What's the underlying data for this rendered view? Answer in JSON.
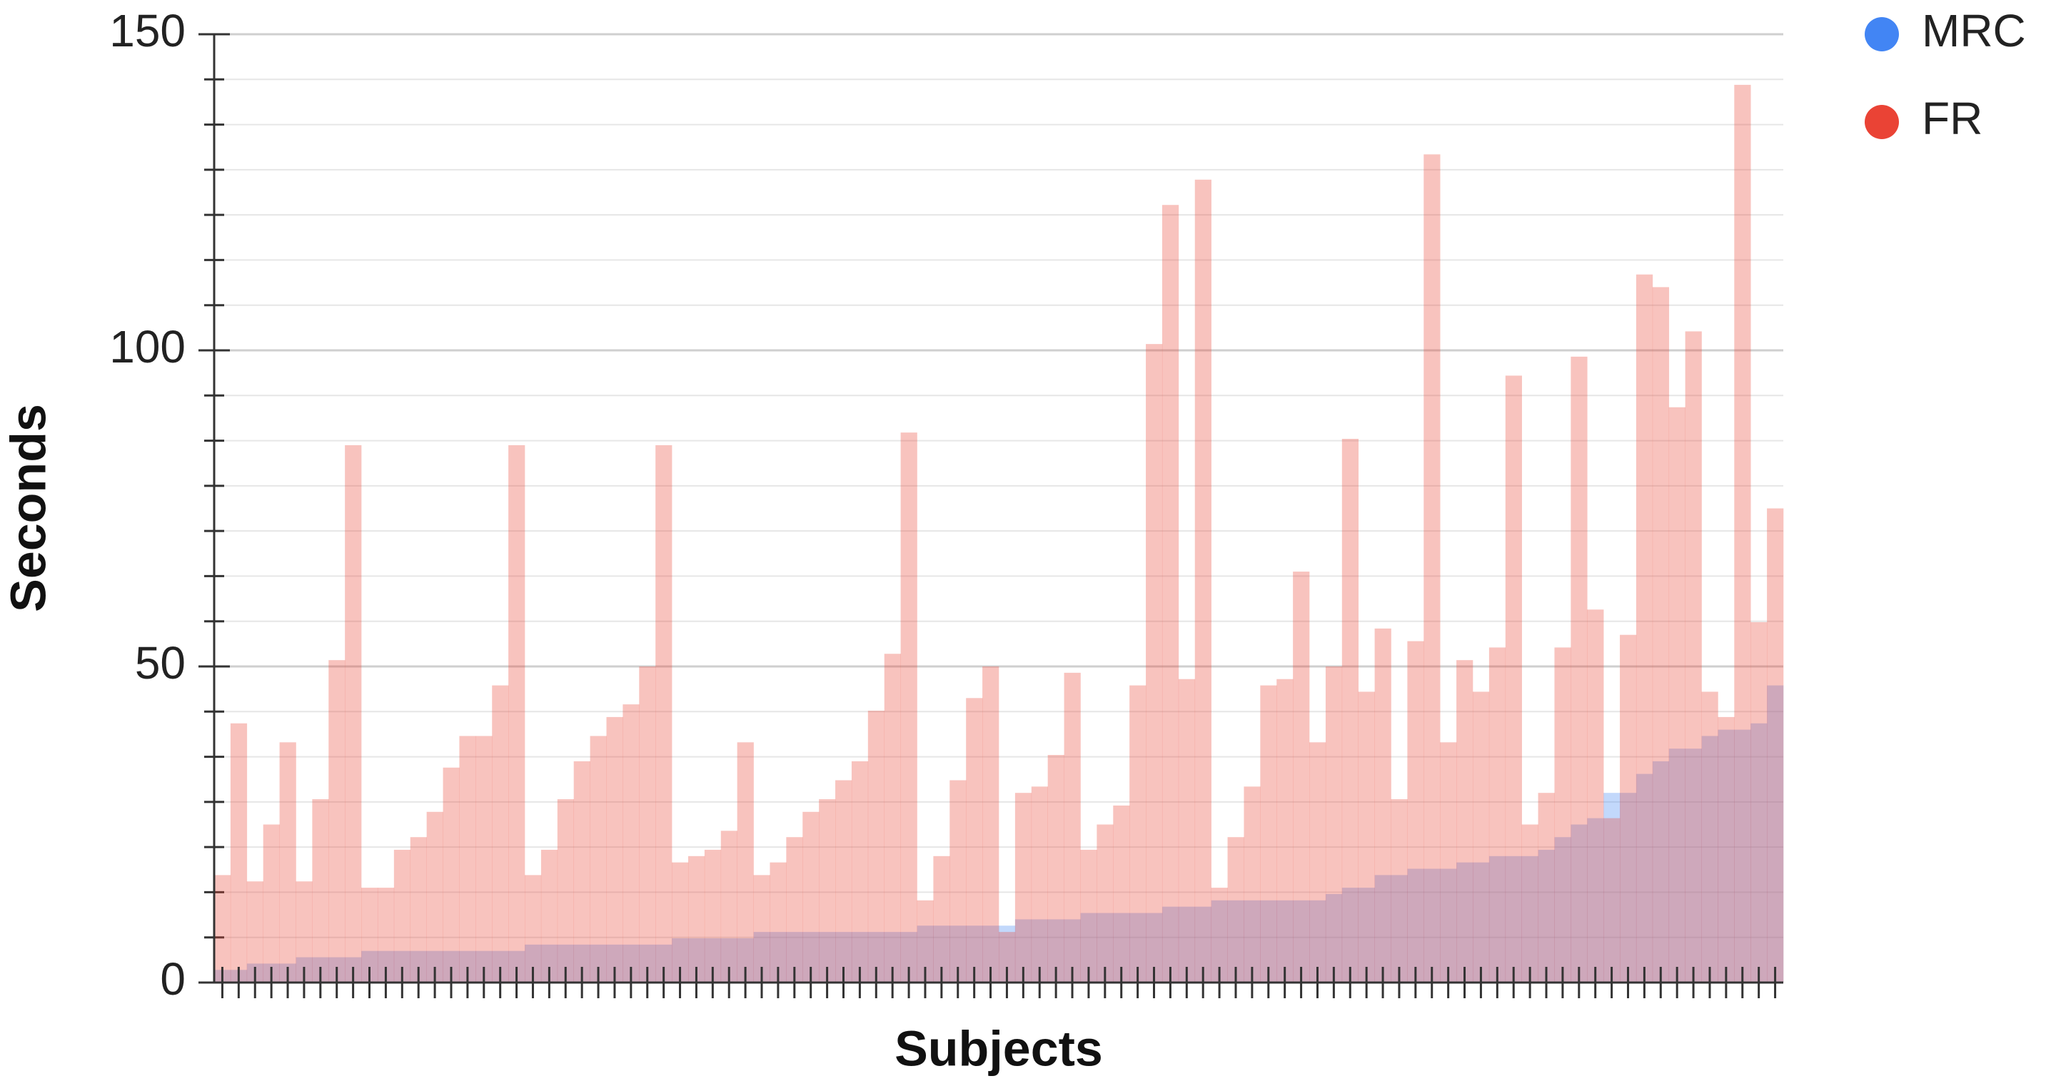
{
  "chart_data": {
    "type": "step-area",
    "x_label": "Subjects",
    "y_label": "Seconds",
    "categories": [
      null,
      null,
      null,
      null,
      null,
      null,
      null,
      null,
      null,
      null,
      null,
      null,
      null,
      null,
      null,
      null,
      null,
      null,
      null,
      null,
      null,
      null,
      null,
      null,
      null,
      null,
      null,
      null,
      null,
      null,
      null,
      null,
      null,
      null,
      null,
      null,
      null,
      null,
      null,
      null,
      null,
      null,
      null,
      null,
      null,
      null,
      null,
      null,
      null,
      null,
      null,
      null,
      null,
      null,
      null,
      null,
      null,
      null,
      null,
      null,
      null,
      null,
      null,
      null,
      null,
      null,
      null,
      null,
      null,
      null,
      null,
      null,
      null,
      null,
      null,
      null,
      null,
      null,
      null,
      null,
      null,
      null,
      null,
      null,
      null,
      null,
      null,
      null,
      null,
      null,
      null,
      null,
      null,
      null,
      null,
      null
    ],
    "series": [
      {
        "name": "MRC",
        "color": "#4285f4",
        "values": [
          2,
          2,
          3,
          3,
          3,
          4,
          4,
          4,
          4,
          5,
          5,
          5,
          5,
          5,
          5,
          5,
          5,
          5,
          5,
          6,
          6,
          6,
          6,
          6,
          6,
          6,
          6,
          6,
          7,
          7,
          7,
          7,
          7,
          8,
          8,
          8,
          8,
          8,
          8,
          8,
          8,
          8,
          8,
          9,
          9,
          9,
          9,
          9,
          9,
          10,
          10,
          10,
          10,
          11,
          11,
          11,
          11,
          11,
          12,
          12,
          12,
          13,
          13,
          13,
          13,
          13,
          13,
          13,
          14,
          15,
          15,
          17,
          17,
          18,
          18,
          18,
          19,
          19,
          20,
          20,
          20,
          21,
          23,
          25,
          26,
          30,
          30,
          33,
          35,
          37,
          37,
          39,
          40,
          40,
          41,
          47
        ]
      },
      {
        "name": "FR",
        "color": "#ea4335",
        "values": [
          17,
          41,
          16,
          25,
          38,
          16,
          29,
          51,
          85,
          15,
          15,
          21,
          23,
          27,
          34,
          39,
          39,
          47,
          85,
          17,
          21,
          29,
          35,
          39,
          42,
          44,
          50,
          85,
          19,
          20,
          21,
          24,
          38,
          17,
          19,
          23,
          27,
          29,
          32,
          35,
          43,
          52,
          87,
          13,
          20,
          32,
          45,
          50,
          8,
          30,
          31,
          36,
          49,
          21,
          25,
          28,
          47,
          101,
          123,
          48,
          127,
          15,
          23,
          31,
          47,
          48,
          65,
          38,
          50,
          86,
          46,
          56,
          29,
          54,
          131,
          38,
          51,
          46,
          53,
          96,
          25,
          30,
          53,
          99,
          59,
          26,
          55,
          112,
          110,
          91,
          103,
          46,
          42,
          142,
          57,
          75
        ]
      }
    ],
    "ylim": [
      0,
      150
    ],
    "yticks": [
      0,
      50,
      100,
      150
    ],
    "minor_grid_divisions": 7,
    "grid": true,
    "legend": "top-right"
  }
}
